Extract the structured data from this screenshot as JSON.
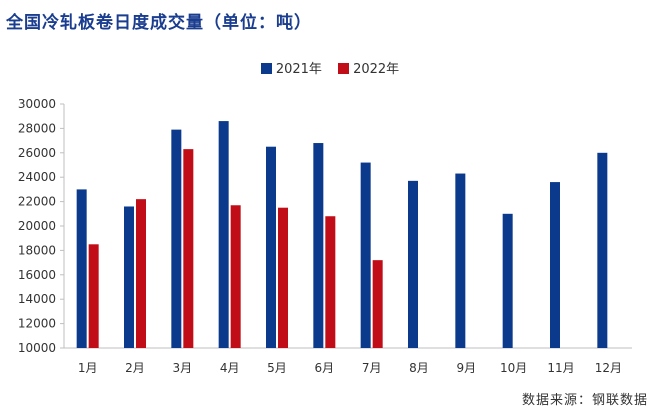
{
  "chart_data": {
    "type": "bar",
    "title": "全国冷轧板卷日度成交量（单位：吨）",
    "categories": [
      "1月",
      "2月",
      "3月",
      "4月",
      "5月",
      "6月",
      "7月",
      "8月",
      "9月",
      "10月",
      "11月",
      "12月"
    ],
    "series": [
      {
        "name": "2021年",
        "color": "#0b3a8c",
        "values": [
          23000,
          21600,
          27900,
          28600,
          26500,
          26800,
          25200,
          23700,
          24300,
          21000,
          23600,
          26000
        ]
      },
      {
        "name": "2022年",
        "color": "#c00d17",
        "values": [
          18500,
          22200,
          26300,
          21700,
          21500,
          20800,
          17200,
          null,
          null,
          null,
          null,
          null
        ]
      }
    ],
    "ylim": [
      10000,
      30000
    ],
    "yticks": [
      10000,
      12000,
      14000,
      16000,
      18000,
      20000,
      22000,
      24000,
      26000,
      28000,
      30000
    ],
    "xlabel": "",
    "ylabel": "",
    "legend": "top-center",
    "grid": false
  },
  "source": "数据来源：钢联数据"
}
